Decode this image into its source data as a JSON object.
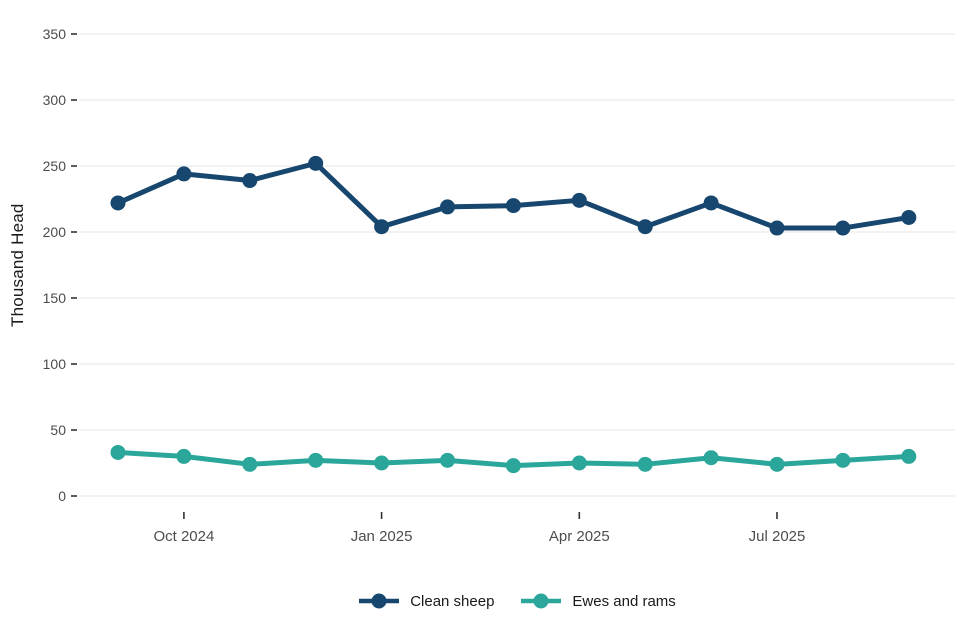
{
  "chart_data": {
    "type": "line",
    "title": "",
    "xlabel": "",
    "ylabel": "Thousand Head",
    "ylim": [
      0,
      350
    ],
    "yticks": [
      0,
      50,
      100,
      150,
      200,
      250,
      300,
      350
    ],
    "grid": true,
    "legend_position": "bottom",
    "x": [
      "Sep 2024",
      "Oct 2024",
      "Nov 2024",
      "Dec 2024",
      "Jan 2025",
      "Feb 2025",
      "Mar 2025",
      "Apr 2025",
      "May 2025",
      "Jun 2025",
      "Jul 2025",
      "Aug 2025",
      "Sep 2025"
    ],
    "xtick_labels": [
      "Oct 2024",
      "Jan 2025",
      "Apr 2025",
      "Jul 2025"
    ],
    "xtick_indices": [
      1,
      4,
      7,
      10
    ],
    "series": [
      {
        "name": "Clean sheep",
        "color": "#17476F",
        "values": [
          222,
          244,
          239,
          252,
          204,
          219,
          220,
          224,
          204,
          222,
          203,
          203,
          211
        ]
      },
      {
        "name": "Ewes and rams",
        "color": "#2BA69A",
        "values": [
          33,
          30,
          24,
          27,
          25,
          27,
          23,
          25,
          24,
          29,
          24,
          27,
          30
        ]
      }
    ],
    "theme": {
      "background": "#FFFFFF",
      "gridline_color": "#EBEBEB",
      "tick_color": "#333333",
      "tick_label_color": "#4D4D4D",
      "axis_title_color": "#1A1A1A",
      "legend_text_color": "#1A1A1A"
    }
  }
}
